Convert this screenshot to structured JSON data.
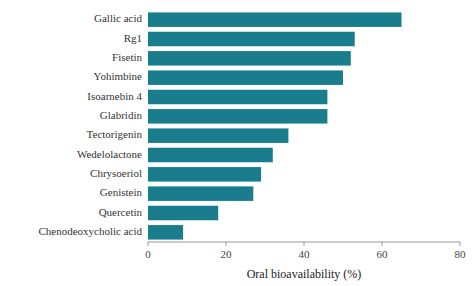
{
  "chart_data": {
    "type": "bar",
    "orientation": "horizontal",
    "categories": [
      "Chenodeoxycholic acid",
      "Quercetin",
      "Genistein",
      "Chrysoeriol",
      "Wedelolactone",
      "Tectorigenin",
      "Glabridin",
      "Isoarnebin 4",
      "Yohimbine",
      "Fisetin",
      "Rg1",
      "Gallic acid"
    ],
    "values": [
      9,
      18,
      27,
      29,
      32,
      36,
      46,
      46,
      50,
      52,
      53,
      65
    ],
    "color": "#1a7d8e",
    "xlabel": "Oral bioavailability (%)",
    "xlim": [
      0,
      80
    ],
    "xticks": [
      0,
      20,
      40,
      60,
      80
    ],
    "grid": false
  }
}
